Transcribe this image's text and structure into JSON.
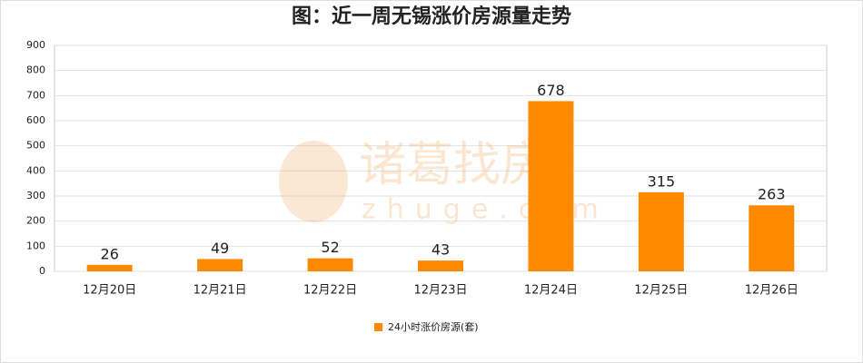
{
  "chart_data": {
    "type": "bar",
    "title": "图：近一周无锡涨价房源量走势",
    "categories": [
      "12月20日",
      "12月21日",
      "12月22日",
      "12月23日",
      "12月24日",
      "12月25日",
      "12月26日"
    ],
    "series": [
      {
        "name": "24小时涨价房源(套)",
        "color": "#ff8a00",
        "values": [
          26,
          49,
          52,
          43,
          678,
          315,
          263
        ]
      }
    ],
    "ylim": [
      0,
      900
    ],
    "yticks": [
      0,
      100,
      200,
      300,
      400,
      500,
      600,
      700,
      800,
      900
    ],
    "grid": true,
    "legend": "bottom",
    "watermark": {
      "brand": "诸葛找房",
      "site": "zhuge.com"
    }
  }
}
